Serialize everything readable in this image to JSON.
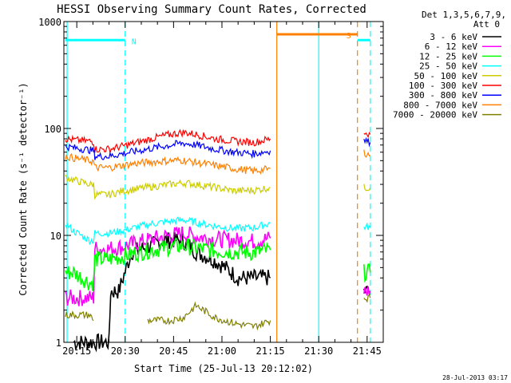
{
  "chart_data": {
    "type": "line",
    "title": "HESSI Observing Summary Count Rates, Corrected",
    "xlabel": "Start Time (25-Jul-13 20:12:02)",
    "ylabel": "Corrected Count Rate (s⁻¹ detector⁻¹)",
    "ylog": true,
    "ylim": [
      1,
      1000
    ],
    "xlim_minutes": [
      11,
      50
    ],
    "x_tick_labels": [
      "20:15",
      "20:30",
      "20:45",
      "21:00",
      "21:15",
      "21:30",
      "21:45"
    ],
    "x_tick_minutes": [
      15,
      30,
      45,
      60,
      75,
      90,
      105
    ],
    "y_tick_labels": [
      "1",
      "10",
      "100",
      "1000"
    ],
    "y_tick_values": [
      1,
      10,
      100,
      1000
    ],
    "legend_header": [
      "Det 1,3,5,6,7,9,",
      "Att 0"
    ],
    "timestamp": "28-Jul-2013 03:17",
    "series": [
      {
        "name": "3 - 6 keV",
        "color": "#000000",
        "segments": [
          [
            [
              14,
              1
            ],
            [
              25,
              1
            ],
            [
              25.5,
              3
            ],
            [
              28,
              3
            ],
            [
              32,
              7
            ],
            [
              38,
              8
            ],
            [
              42,
              9
            ],
            [
              48,
              9
            ],
            [
              52,
              7
            ],
            [
              57,
              6
            ],
            [
              61,
              5
            ],
            [
              65,
              4
            ],
            [
              68,
              4
            ],
            [
              72,
              4
            ],
            [
              74,
              4
            ],
            [
              75,
              4
            ]
          ],
          [
            [
              104,
              3
            ],
            [
              106,
              3
            ]
          ]
        ]
      },
      {
        "name": "6 - 12 keV",
        "color": "#ff00ff",
        "segments": [
          [
            [
              11.5,
              2.6
            ],
            [
              14,
              2.6
            ],
            [
              19,
              2.6
            ],
            [
              20.2,
              2.6
            ],
            [
              20.6,
              7.5
            ],
            [
              25,
              7.5
            ],
            [
              29,
              7.8
            ],
            [
              33,
              8.4
            ],
            [
              38,
              9.2
            ],
            [
              44,
              10
            ],
            [
              48,
              10.5
            ],
            [
              52,
              9.8
            ],
            [
              58,
              9.2
            ],
            [
              64,
              9
            ],
            [
              70,
              8.8
            ],
            [
              75,
              9.4
            ]
          ],
          [
            [
              104,
              3
            ],
            [
              106,
              3
            ]
          ]
        ]
      },
      {
        "name": "12 - 25 keV",
        "color": "#00ff00",
        "segments": [
          [
            [
              11.5,
              4.5
            ],
            [
              14,
              4.5
            ],
            [
              19,
              3.6
            ],
            [
              20.2,
              3.6
            ],
            [
              20.6,
              6
            ],
            [
              25,
              6
            ],
            [
              29,
              6.3
            ],
            [
              33,
              6.8
            ],
            [
              38,
              7.3
            ],
            [
              44,
              7.8
            ],
            [
              48,
              8
            ],
            [
              52,
              7.6
            ],
            [
              58,
              7.2
            ],
            [
              64,
              7
            ],
            [
              70,
              6.9
            ],
            [
              75,
              7.3
            ]
          ],
          [
            [
              104,
              4.5
            ],
            [
              106,
              4.5
            ]
          ]
        ]
      },
      {
        "name": "25 - 50 keV",
        "color": "#00ffff",
        "segments": [
          [
            [
              11.5,
              13
            ],
            [
              14,
              11
            ],
            [
              19,
              9
            ],
            [
              20.2,
              9
            ],
            [
              20.6,
              10.5
            ],
            [
              25,
              10.5
            ],
            [
              29,
              11
            ],
            [
              33,
              11.8
            ],
            [
              38,
              12.8
            ],
            [
              44,
              13.5
            ],
            [
              48,
              14
            ],
            [
              52,
              13.2
            ],
            [
              58,
              12.2
            ],
            [
              64,
              11.6
            ],
            [
              70,
              11.8
            ],
            [
              75,
              13
            ]
          ],
          [
            [
              104,
              12
            ],
            [
              106,
              12
            ]
          ]
        ]
      },
      {
        "name": "50 - 100 keV",
        "color": "#cccc00",
        "segments": [
          [
            [
              11.5,
              35
            ],
            [
              14,
              33
            ],
            [
              19,
              30
            ],
            [
              20.2,
              30
            ],
            [
              20.6,
              24
            ],
            [
              25,
              24
            ],
            [
              29,
              26
            ],
            [
              33,
              27
            ],
            [
              38,
              28.5
            ],
            [
              44,
              30
            ],
            [
              48,
              31
            ],
            [
              52,
              30
            ],
            [
              58,
              28
            ],
            [
              64,
              26
            ],
            [
              70,
              26.5
            ],
            [
              75,
              28
            ]
          ],
          [
            [
              104,
              28
            ],
            [
              106,
              28
            ]
          ]
        ]
      },
      {
        "name": "100 - 300 keV",
        "color": "#ff0000",
        "segments": [
          [
            [
              11.5,
              80
            ],
            [
              14,
              78
            ],
            [
              19,
              76
            ],
            [
              20.2,
              75
            ],
            [
              20.6,
              64
            ],
            [
              25,
              64
            ],
            [
              29,
              68
            ],
            [
              33,
              73
            ],
            [
              38,
              80
            ],
            [
              44,
              88
            ],
            [
              48,
              92
            ],
            [
              52,
              88
            ],
            [
              58,
              80
            ],
            [
              64,
              76
            ],
            [
              70,
              74
            ],
            [
              75,
              80
            ]
          ],
          [
            [
              104,
              92
            ],
            [
              106,
              88
            ]
          ]
        ]
      },
      {
        "name": "300 - 800 keV",
        "color": "#0000ff",
        "segments": [
          [
            [
              11.5,
              68
            ],
            [
              14,
              66
            ],
            [
              19,
              63
            ],
            [
              20.2,
              62
            ],
            [
              20.6,
              55
            ],
            [
              25,
              55
            ],
            [
              29,
              58
            ],
            [
              33,
              61
            ],
            [
              38,
              65
            ],
            [
              44,
              70
            ],
            [
              48,
              73
            ],
            [
              52,
              70
            ],
            [
              58,
              64
            ],
            [
              64,
              60
            ],
            [
              70,
              58
            ],
            [
              75,
              62
            ]
          ],
          [
            [
              104,
              78
            ],
            [
              106,
              74
            ]
          ]
        ]
      },
      {
        "name": "800 - 7000 keV",
        "color": "#ff8000",
        "segments": [
          [
            [
              11.5,
              55
            ],
            [
              14,
              53
            ],
            [
              19,
              50
            ],
            [
              20.2,
              49
            ],
            [
              20.6,
              43
            ],
            [
              25,
              43
            ],
            [
              29,
              45
            ],
            [
              33,
              47
            ],
            [
              38,
              48.5
            ],
            [
              44,
              50
            ],
            [
              48,
              50.5
            ],
            [
              52,
              48
            ],
            [
              58,
              45
            ],
            [
              64,
              42
            ],
            [
              70,
              40
            ],
            [
              75,
              42
            ]
          ],
          [
            [
              104,
              60
            ],
            [
              106,
              56
            ]
          ]
        ]
      },
      {
        "name": "7000 - 20000 keV",
        "color": "#808000",
        "segments": [
          [
            [
              11.5,
              1.8
            ],
            [
              14,
              1.8
            ],
            [
              19,
              1.8
            ],
            [
              20.2,
              1.6
            ]
          ],
          [
            [
              37,
              1.6
            ],
            [
              44,
              1.6
            ],
            [
              48,
              1.7
            ],
            [
              52,
              2.2
            ],
            [
              58,
              1.7
            ],
            [
              64,
              1.5
            ],
            [
              70,
              1.4
            ],
            [
              75,
              1.6
            ]
          ],
          [
            [
              104,
              2.6
            ],
            [
              106,
              2.6
            ]
          ]
        ]
      }
    ],
    "flags": [
      {
        "label": "N",
        "color": "#00ffff",
        "level": 670,
        "x_from": 11.5,
        "x_to": 30
      },
      {
        "label": "S",
        "color": "#ff8000",
        "level": 760,
        "x_from": 77,
        "x_to": 102
      },
      {
        "label": "",
        "color": "#00ffff",
        "level": 670,
        "x_from": 102,
        "x_to": 106
      }
    ],
    "vlines": [
      {
        "minute": 30,
        "color": "#00ffff",
        "dash": true
      },
      {
        "minute": 77,
        "color": "#ff8000",
        "dash": false
      },
      {
        "minute": 90,
        "color": "#00ffff",
        "dash": false
      },
      {
        "minute": 102,
        "color": "#ff8000",
        "dash": true
      },
      {
        "minute": 106,
        "color": "#00ffff",
        "dash": true
      },
      {
        "minute": 12,
        "color": "#00ffff",
        "dash": false
      }
    ]
  }
}
